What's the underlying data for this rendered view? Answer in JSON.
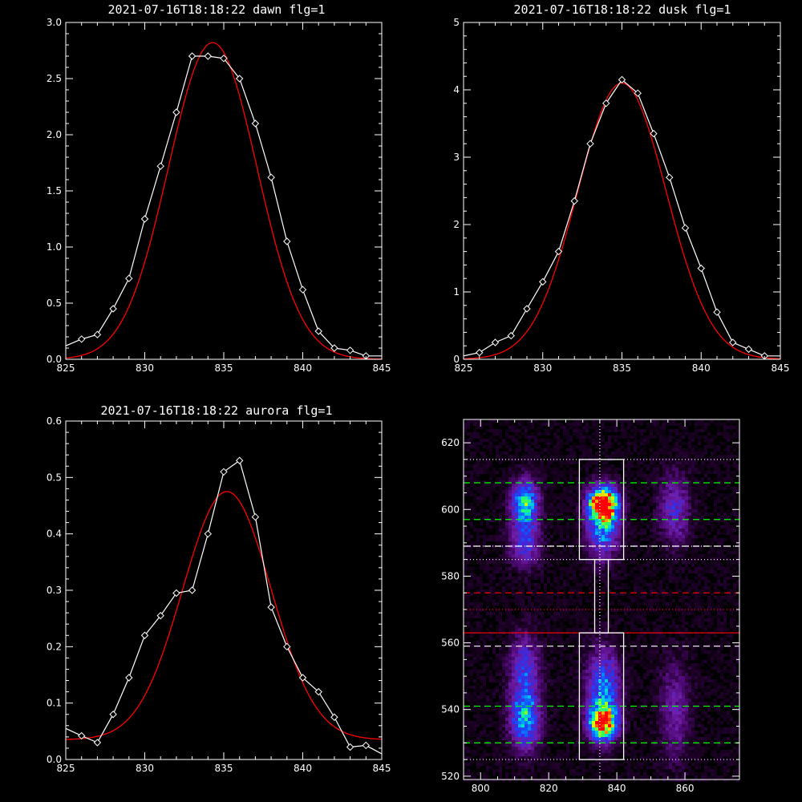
{
  "colors": {
    "background": "#000000",
    "axes": "#ffffff",
    "data": "#ffffff",
    "fit": "#ff0000",
    "green_line": "#00ff00",
    "red_line": "#ff0000",
    "white_line": "#ffffff"
  },
  "chart_data": [
    {
      "type": "line",
      "title": "2021-07-16T18:18:22 dawn flg=1",
      "xlim": [
        825,
        845
      ],
      "ylim": [
        0,
        3.0
      ],
      "xticks": [
        "825",
        "830",
        "835",
        "840",
        "845"
      ],
      "yticks": [
        "0.0",
        "0.5",
        "1.0",
        "1.5",
        "2.0",
        "2.5",
        "3.0"
      ],
      "series": [
        {
          "style": "data-diamonds",
          "x": [
            825,
            826,
            827,
            828,
            829,
            830,
            831,
            832,
            833,
            834,
            835,
            836,
            837,
            838,
            839,
            840,
            841,
            842,
            843,
            844,
            845
          ],
          "y": [
            0.12,
            0.18,
            0.22,
            0.45,
            0.72,
            1.25,
            1.72,
            2.2,
            2.7,
            2.7,
            2.68,
            2.5,
            2.1,
            1.62,
            1.05,
            0.62,
            0.25,
            0.1,
            0.08,
            0.03,
            0.03
          ]
        },
        {
          "style": "gaussian-fit",
          "amp": 2.82,
          "center": 834.3,
          "sigma": 2.8,
          "offset": 0.0
        }
      ]
    },
    {
      "type": "line",
      "title": "2021-07-16T18:18:22 dusk flg=1",
      "xlim": [
        825,
        845
      ],
      "ylim": [
        0,
        5
      ],
      "xticks": [
        "825",
        "830",
        "835",
        "840",
        "845"
      ],
      "yticks": [
        "0",
        "1",
        "2",
        "3",
        "4",
        "5"
      ],
      "series": [
        {
          "style": "data-diamonds",
          "x": [
            825,
            826,
            827,
            828,
            829,
            830,
            831,
            832,
            833,
            834,
            835,
            836,
            837,
            838,
            839,
            840,
            841,
            842,
            843,
            844,
            845
          ],
          "y": [
            0.05,
            0.1,
            0.25,
            0.35,
            0.75,
            1.15,
            1.6,
            2.35,
            3.2,
            3.8,
            4.15,
            3.95,
            3.35,
            2.7,
            1.95,
            1.35,
            0.7,
            0.25,
            0.15,
            0.05,
            0.05
          ]
        },
        {
          "style": "gaussian-fit",
          "amp": 4.1,
          "center": 835.0,
          "sigma": 2.8,
          "offset": 0.0
        }
      ]
    },
    {
      "type": "line",
      "title": "2021-07-16T18:18:22 aurora flg=1",
      "xlim": [
        825,
        845
      ],
      "ylim": [
        0,
        0.6
      ],
      "xticks": [
        "825",
        "830",
        "835",
        "840",
        "845"
      ],
      "yticks": [
        "0.0",
        "0.1",
        "0.2",
        "0.3",
        "0.4",
        "0.5",
        "0.6"
      ],
      "series": [
        {
          "style": "data-diamonds",
          "x": [
            825,
            826,
            827,
            828,
            829,
            830,
            831,
            832,
            833,
            834,
            835,
            836,
            837,
            838,
            839,
            840,
            841,
            842,
            843,
            844,
            845
          ],
          "y": [
            0.055,
            0.042,
            0.03,
            0.08,
            0.145,
            0.22,
            0.255,
            0.295,
            0.3,
            0.4,
            0.51,
            0.53,
            0.43,
            0.27,
            0.2,
            0.145,
            0.12,
            0.075,
            0.022,
            0.025,
            0.01
          ]
        },
        {
          "style": "gaussian-fit",
          "amp": 0.44,
          "center": 835.2,
          "sigma": 2.8,
          "offset": 0.035
        }
      ]
    },
    {
      "type": "heatmap",
      "title": "",
      "xlim": [
        795,
        876
      ],
      "ylim": [
        519,
        627
      ],
      "xticks": [
        "800",
        "820",
        "840",
        "860"
      ],
      "yticks": [
        "520",
        "540",
        "560",
        "580",
        "600",
        "620"
      ],
      "blobs": [
        {
          "x": 813,
          "y": 602,
          "sx": 2.6,
          "sy": 4.5,
          "peak": 0.65
        },
        {
          "x": 813,
          "y": 590,
          "sx": 3.0,
          "sy": 5.0,
          "peak": 0.35
        },
        {
          "x": 836,
          "y": 602,
          "sx": 2.8,
          "sy": 3.0,
          "peak": 1.0
        },
        {
          "x": 836,
          "y": 596,
          "sx": 3.2,
          "sy": 6.5,
          "peak": 0.6
        },
        {
          "x": 836,
          "y": 536,
          "sx": 2.8,
          "sy": 3.5,
          "peak": 0.95
        },
        {
          "x": 836,
          "y": 546,
          "sx": 3.2,
          "sy": 8.0,
          "peak": 0.5
        },
        {
          "x": 813,
          "y": 537,
          "sx": 3.0,
          "sy": 6.0,
          "peak": 0.55
        },
        {
          "x": 813,
          "y": 552,
          "sx": 3.0,
          "sy": 7.0,
          "peak": 0.35
        },
        {
          "x": 857,
          "y": 600,
          "sx": 3.0,
          "sy": 7.0,
          "peak": 0.3
        },
        {
          "x": 857,
          "y": 540,
          "sx": 3.0,
          "sy": 10.0,
          "peak": 0.22
        }
      ],
      "dotted_white_h": [
        615,
        589,
        585,
        563,
        525
      ],
      "dotted_white_v": [
        835
      ],
      "dotted_red_h": [
        570
      ],
      "dashed_green_h": [
        608,
        597,
        541,
        530
      ],
      "dashed_white_h": [
        589,
        559
      ],
      "dashed_red_h": [
        575
      ],
      "solid_red_h": [
        563
      ],
      "boxes": [
        {
          "x0": 829,
          "x1": 842,
          "y0": 585,
          "y1": 615
        },
        {
          "x0": 829,
          "x1": 842,
          "y0": 525,
          "y1": 563
        },
        {
          "x0": 833.5,
          "x1": 837.5,
          "y0": 563,
          "y1": 585
        }
      ]
    }
  ]
}
